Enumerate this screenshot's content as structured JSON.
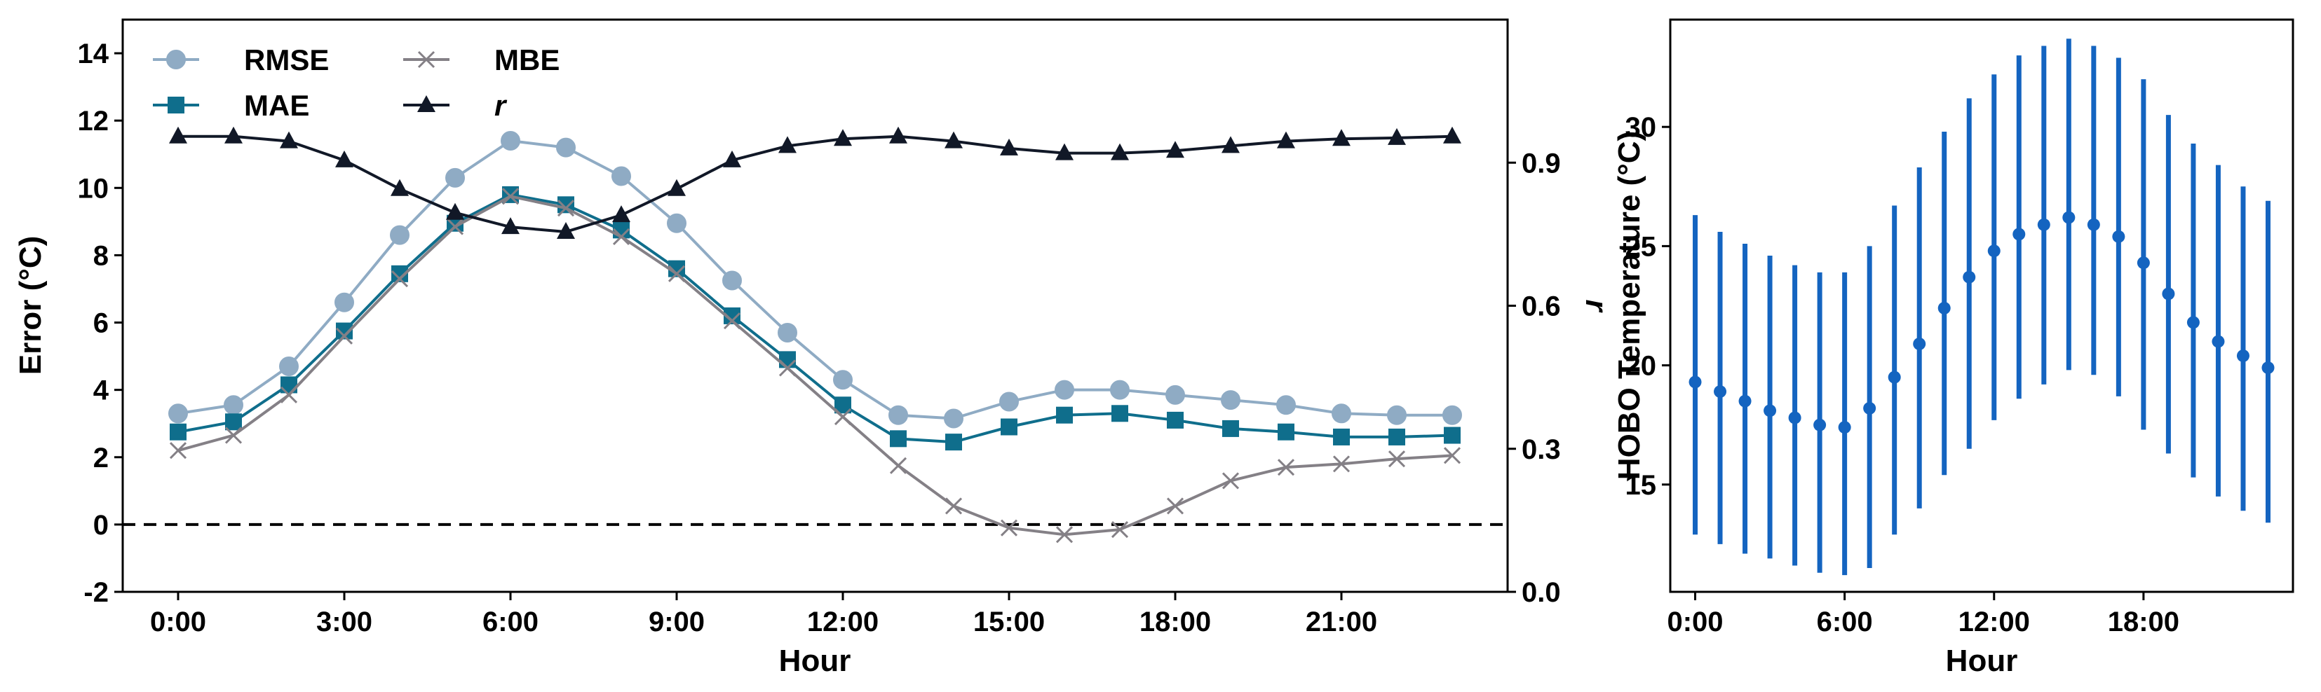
{
  "chart_data": [
    {
      "type": "line",
      "xlabel": "Hour",
      "ylabel": "Error (°C)",
      "ylabel_right": "r",
      "xlim": [
        -1,
        24
      ],
      "ylim": [
        -2,
        15
      ],
      "ylim_right": [
        0.0,
        1.2
      ],
      "x_ticks": [
        0,
        3,
        6,
        9,
        12,
        15,
        18,
        21
      ],
      "x_tick_labels": [
        "0:00",
        "3:00",
        "6:00",
        "9:00",
        "12:00",
        "15:00",
        "18:00",
        "21:00"
      ],
      "y_ticks": [
        -2,
        0,
        2,
        4,
        6,
        8,
        10,
        12,
        14
      ],
      "y_tick_labels": [
        "-2",
        "0",
        "2",
        "4",
        "6",
        "8",
        "10",
        "12",
        "14"
      ],
      "y_right_ticks": [
        0.0,
        0.3,
        0.6,
        0.9
      ],
      "y_right_tick_labels": [
        "0.0",
        "0.3",
        "0.6",
        "0.9"
      ],
      "reference_line": 0,
      "legend_position": "top-left",
      "x": [
        0,
        1,
        2,
        3,
        4,
        5,
        6,
        7,
        8,
        9,
        10,
        11,
        12,
        13,
        14,
        15,
        16,
        17,
        18,
        19,
        20,
        21,
        22,
        23
      ],
      "series": [
        {
          "name": "RMSE",
          "axis": "left",
          "marker": "circle",
          "color": "#8fabc4",
          "values": [
            3.3,
            3.55,
            4.7,
            6.6,
            8.6,
            10.3,
            11.4,
            11.2,
            10.35,
            8.95,
            7.25,
            5.7,
            4.3,
            3.25,
            3.15,
            3.65,
            4.0,
            4.0,
            3.85,
            3.7,
            3.55,
            3.3,
            3.25,
            3.25
          ]
        },
        {
          "name": "MAE",
          "axis": "left",
          "marker": "square",
          "color": "#0f6e8c",
          "values": [
            2.75,
            3.05,
            4.15,
            5.75,
            7.45,
            8.95,
            9.8,
            9.5,
            8.75,
            7.6,
            6.2,
            4.9,
            3.55,
            2.55,
            2.45,
            2.9,
            3.25,
            3.3,
            3.1,
            2.85,
            2.75,
            2.6,
            2.6,
            2.65
          ]
        },
        {
          "name": "MBE",
          "axis": "left",
          "marker": "x",
          "color": "#848086",
          "values": [
            2.2,
            2.65,
            3.85,
            5.6,
            7.3,
            8.85,
            9.75,
            9.4,
            8.55,
            7.45,
            6.05,
            4.65,
            3.2,
            1.75,
            0.55,
            -0.1,
            -0.3,
            -0.15,
            0.55,
            1.3,
            1.7,
            1.8,
            1.95,
            2.05
          ]
        },
        {
          "name": "r",
          "axis": "right",
          "marker": "triangle",
          "color": "#111827",
          "values": [
            0.955,
            0.955,
            0.945,
            0.905,
            0.845,
            0.795,
            0.765,
            0.755,
            0.79,
            0.845,
            0.905,
            0.935,
            0.95,
            0.955,
            0.945,
            0.93,
            0.92,
            0.92,
            0.925,
            0.935,
            0.945,
            0.95,
            0.952,
            0.955
          ]
        }
      ]
    },
    {
      "type": "errorbar",
      "xlabel": "Hour",
      "ylabel": "HOBO Temperature (°C)",
      "xlim": [
        -1,
        24
      ],
      "ylim": [
        10.5,
        34.5
      ],
      "x_ticks": [
        0,
        6,
        12,
        18
      ],
      "x_tick_labels": [
        "0:00",
        "6:00",
        "12:00",
        "18:00"
      ],
      "y_ticks": [
        15,
        20,
        25,
        30
      ],
      "y_tick_labels": [
        "15",
        "20",
        "25",
        "30"
      ],
      "color": "#1464c0",
      "x": [
        0,
        1,
        2,
        3,
        4,
        5,
        6,
        7,
        8,
        9,
        10,
        11,
        12,
        13,
        14,
        15,
        16,
        17,
        18,
        19,
        20,
        21,
        22,
        23
      ],
      "mean": [
        19.3,
        18.9,
        18.5,
        18.1,
        17.8,
        17.5,
        17.4,
        18.2,
        19.5,
        20.9,
        22.4,
        23.7,
        24.8,
        25.5,
        25.9,
        26.2,
        25.9,
        25.4,
        24.3,
        23.0,
        21.8,
        21.0,
        20.4,
        19.9
      ],
      "lower": [
        12.9,
        12.5,
        12.1,
        11.9,
        11.6,
        11.3,
        11.2,
        11.5,
        12.9,
        14.0,
        15.4,
        16.5,
        17.7,
        18.6,
        19.2,
        19.8,
        19.6,
        18.7,
        17.3,
        16.3,
        15.3,
        14.5,
        13.9,
        13.4
      ],
      "upper": [
        26.3,
        25.6,
        25.1,
        24.6,
        24.2,
        23.9,
        23.9,
        25.0,
        26.7,
        28.3,
        29.8,
        31.2,
        32.2,
        33.0,
        33.4,
        33.7,
        33.4,
        32.9,
        32.0,
        30.5,
        29.3,
        28.4,
        27.5,
        26.9
      ]
    }
  ]
}
